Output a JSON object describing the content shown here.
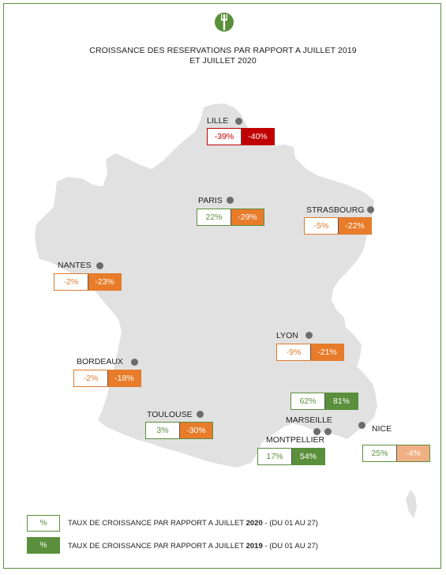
{
  "title": {
    "line1": "CROISSANCE DES RESERVATIONS PAR RAPPORT A JUILLET 2019",
    "line2": "ET JUILLET 2020"
  },
  "logo_icon": "fork-circle-icon",
  "colors": {
    "frame": "#5a8f3c",
    "map_fill": "#e1e1e1",
    "dot": "#6d6d6d",
    "text_green": "#5a8f3c",
    "text_orange": "#e07b2a",
    "text_red": "#c00000",
    "fill_green": "#5a8f3c",
    "fill_orange": "#e87c2a",
    "fill_red": "#c00000",
    "fill_light_orange": "#f1b084"
  },
  "cities": [
    {
      "name": "LILLE",
      "v2020": "-39%",
      "v2019": "-40%",
      "c2020": "red",
      "c2019": "red"
    },
    {
      "name": "PARIS",
      "v2020": "22%",
      "v2019": "-29%",
      "c2020": "green",
      "c2019": "orange"
    },
    {
      "name": "STRASBOURG",
      "v2020": "-5%",
      "v2019": "-22%",
      "c2020": "orange",
      "c2019": "orange"
    },
    {
      "name": "NANTES",
      "v2020": "-2%",
      "v2019": "-23%",
      "c2020": "orange",
      "c2019": "orange"
    },
    {
      "name": "LYON",
      "v2020": "-9%",
      "v2019": "-21%",
      "c2020": "orange",
      "c2019": "orange"
    },
    {
      "name": "BORDEAUX",
      "v2020": "-2%",
      "v2019": "-18%",
      "c2020": "orange",
      "c2019": "orange"
    },
    {
      "name": "MARSEILLE",
      "v2020": "62%",
      "v2019": "81%",
      "c2020": "green",
      "c2019": "green"
    },
    {
      "name": "TOULOUSE",
      "v2020": "3%",
      "v2019": "-30%",
      "c2020": "green",
      "c2019": "orange"
    },
    {
      "name": "NICE",
      "v2020": "25%",
      "v2019": "-4%",
      "c2020": "green",
      "c2019": "light_orange"
    },
    {
      "name": "MONTPELLIER",
      "v2020": "17%",
      "v2019": "54%",
      "c2020": "green",
      "c2019": "green"
    }
  ],
  "legend": [
    {
      "box": "%",
      "prefix": "TAUX DE CROISSANCE PAR RAPPORT A JUILLET ",
      "year": "2020",
      "suffix": " - (DU 01 AU 27)",
      "style": "outline"
    },
    {
      "box": "%",
      "prefix": "TAUX DE CROISSANCE PAR RAPPORT A JUILLET ",
      "year": "2019",
      "suffix": " - (DU 01 AU 27)",
      "style": "filled"
    }
  ]
}
